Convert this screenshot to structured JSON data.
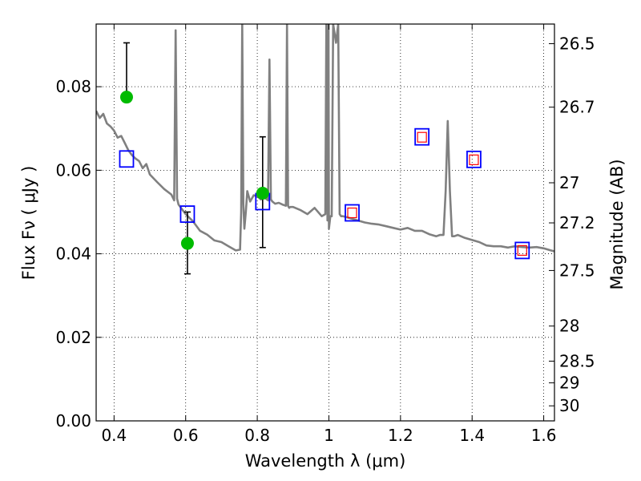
{
  "chart_data": {
    "type": "line",
    "xlabel": "Wavelength  λ (μm)",
    "ylabel": "Flux  Fν  ( μJy )",
    "ylabel_right": "Magnitude (AB)",
    "xlim": [
      0.35,
      1.63
    ],
    "ylim": [
      0.0,
      0.095
    ],
    "grid": true,
    "x_ticks": [
      0.4,
      0.6,
      0.8,
      1.0,
      1.2,
      1.4,
      1.6
    ],
    "x_tick_labels": [
      "0.4",
      "0.6",
      "0.8",
      "1",
      "1.2",
      "1.4",
      "1.6"
    ],
    "y_ticks": [
      0.0,
      0.02,
      0.04,
      0.06,
      0.08
    ],
    "y_tick_labels": [
      "0.00",
      "0.02",
      "0.04",
      "0.06",
      "0.08"
    ],
    "right_ticks": [
      {
        "label": "26.5",
        "flux": 0.0903
      },
      {
        "label": "26.7",
        "flux": 0.0751
      },
      {
        "label": "27",
        "flux": 0.057
      },
      {
        "label": "27.2",
        "flux": 0.0474
      },
      {
        "label": "27.5",
        "flux": 0.036
      },
      {
        "label": "28",
        "flux": 0.0227
      },
      {
        "label": "28.5",
        "flux": 0.0143
      },
      {
        "label": "29",
        "flux": 0.0091
      },
      {
        "label": "30",
        "flux": 0.0036
      }
    ],
    "series": [
      {
        "name": "model spectrum",
        "color": "#808080",
        "x": [
          0.35,
          0.36,
          0.37,
          0.38,
          0.39,
          0.4,
          0.41,
          0.42,
          0.43,
          0.44,
          0.45,
          0.46,
          0.47,
          0.48,
          0.49,
          0.5,
          0.52,
          0.54,
          0.56,
          0.568,
          0.572,
          0.576,
          0.58,
          0.6,
          0.62,
          0.64,
          0.66,
          0.68,
          0.7,
          0.72,
          0.74,
          0.752,
          0.755,
          0.758,
          0.761,
          0.764,
          0.768,
          0.772,
          0.78,
          0.79,
          0.8,
          0.81,
          0.82,
          0.83,
          0.834,
          0.838,
          0.842,
          0.85,
          0.86,
          0.87,
          0.88,
          0.883,
          0.886,
          0.889,
          0.892,
          0.9,
          0.92,
          0.94,
          0.96,
          0.98,
          0.99,
          0.993,
          0.996,
          0.999,
          1.0,
          1.004,
          1.008,
          1.012,
          1.02,
          1.026,
          1.03,
          1.034,
          1.04,
          1.06,
          1.08,
          1.1,
          1.12,
          1.14,
          1.16,
          1.18,
          1.2,
          1.22,
          1.24,
          1.26,
          1.28,
          1.3,
          1.31,
          1.32,
          1.326,
          1.332,
          1.338,
          1.344,
          1.35,
          1.36,
          1.38,
          1.4,
          1.42,
          1.44,
          1.46,
          1.48,
          1.5,
          1.52,
          1.54,
          1.56,
          1.58,
          1.6,
          1.62,
          1.63
        ],
        "y": [
          0.0742,
          0.0725,
          0.0735,
          0.0712,
          0.0705,
          0.0695,
          0.0678,
          0.0682,
          0.0665,
          0.0648,
          0.0636,
          0.0628,
          0.0622,
          0.0605,
          0.0615,
          0.059,
          0.0572,
          0.0555,
          0.0542,
          0.0528,
          0.0935,
          0.0532,
          0.0518,
          0.0495,
          0.0478,
          0.0455,
          0.0446,
          0.0432,
          0.0428,
          0.0418,
          0.0408,
          0.041,
          0.05,
          0.095,
          0.052,
          0.046,
          0.05,
          0.055,
          0.0525,
          0.054,
          0.0538,
          0.053,
          0.0535,
          0.0528,
          0.0865,
          0.053,
          0.0525,
          0.052,
          0.0522,
          0.0518,
          0.0515,
          0.095,
          0.0515,
          0.051,
          0.0512,
          0.0512,
          0.0505,
          0.0495,
          0.051,
          0.049,
          0.0495,
          0.095,
          0.048,
          0.095,
          0.046,
          0.049,
          0.049,
          0.095,
          0.0905,
          0.095,
          0.0495,
          0.049,
          0.049,
          0.0485,
          0.048,
          0.0475,
          0.0472,
          0.047,
          0.0466,
          0.0462,
          0.0458,
          0.0462,
          0.0455,
          0.0455,
          0.0447,
          0.0442,
          0.0445,
          0.0445,
          0.055,
          0.0718,
          0.055,
          0.0442,
          0.0442,
          0.0445,
          0.0438,
          0.0433,
          0.0428,
          0.042,
          0.0418,
          0.0418,
          0.0415,
          0.0418,
          0.0416,
          0.0415,
          0.0416,
          0.0413,
          0.0408,
          0.0406
        ]
      },
      {
        "name": "model photometry (blue squares)",
        "color": "#0000ff",
        "x": [
          0.435,
          0.605,
          0.815,
          1.065,
          1.26,
          1.405,
          1.54
        ],
        "y": [
          0.0627,
          0.0495,
          0.0525,
          0.0498,
          0.068,
          0.0626,
          0.0408
        ]
      },
      {
        "name": "observed photometry (red squares)",
        "color": "#ff0000",
        "x": [
          1.065,
          1.26,
          1.405,
          1.54
        ],
        "y": [
          0.0498,
          0.0679,
          0.0625,
          0.0408
        ]
      },
      {
        "name": "observed photometry (green circles)",
        "color": "#00bb00",
        "x": [
          0.435,
          0.605,
          0.815
        ],
        "y": [
          0.0775,
          0.0425,
          0.0545
        ],
        "err_low": [
          0.0775,
          0.0352,
          0.0415
        ],
        "err_high": [
          0.0905,
          0.05,
          0.068
        ]
      }
    ]
  }
}
